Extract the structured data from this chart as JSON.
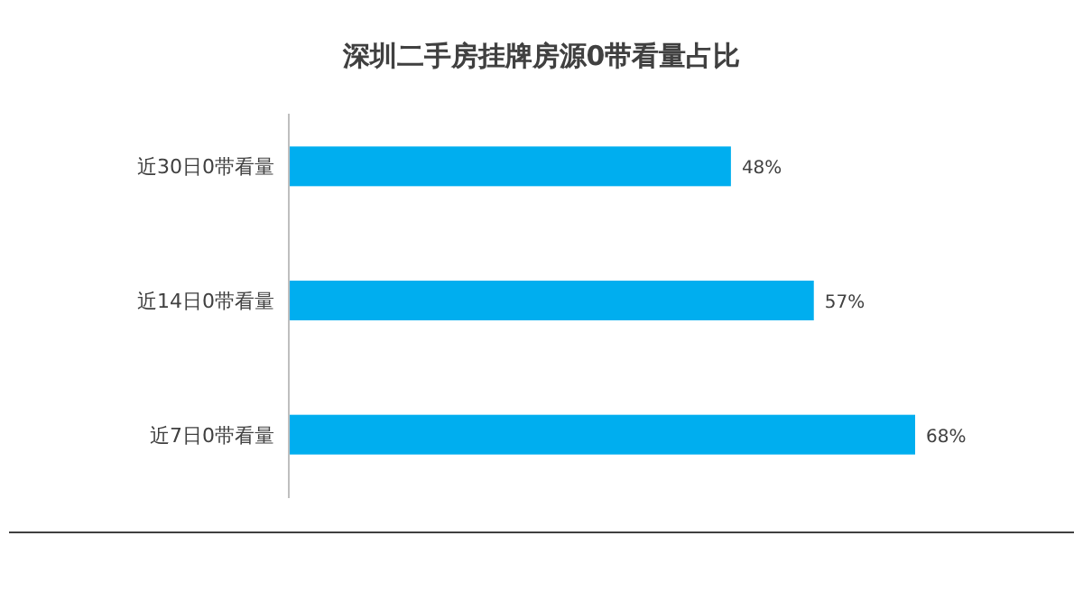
{
  "chart_data": {
    "type": "bar",
    "orientation": "horizontal",
    "title": "深圳二手房挂牌房源0带看量占比",
    "categories": [
      "近30日0带看量",
      "近14日0带看量",
      "近7日0带看量"
    ],
    "values": [
      48,
      57,
      68
    ],
    "value_labels": [
      "48%",
      "57%",
      "68%"
    ],
    "color": "#00aeef"
  }
}
